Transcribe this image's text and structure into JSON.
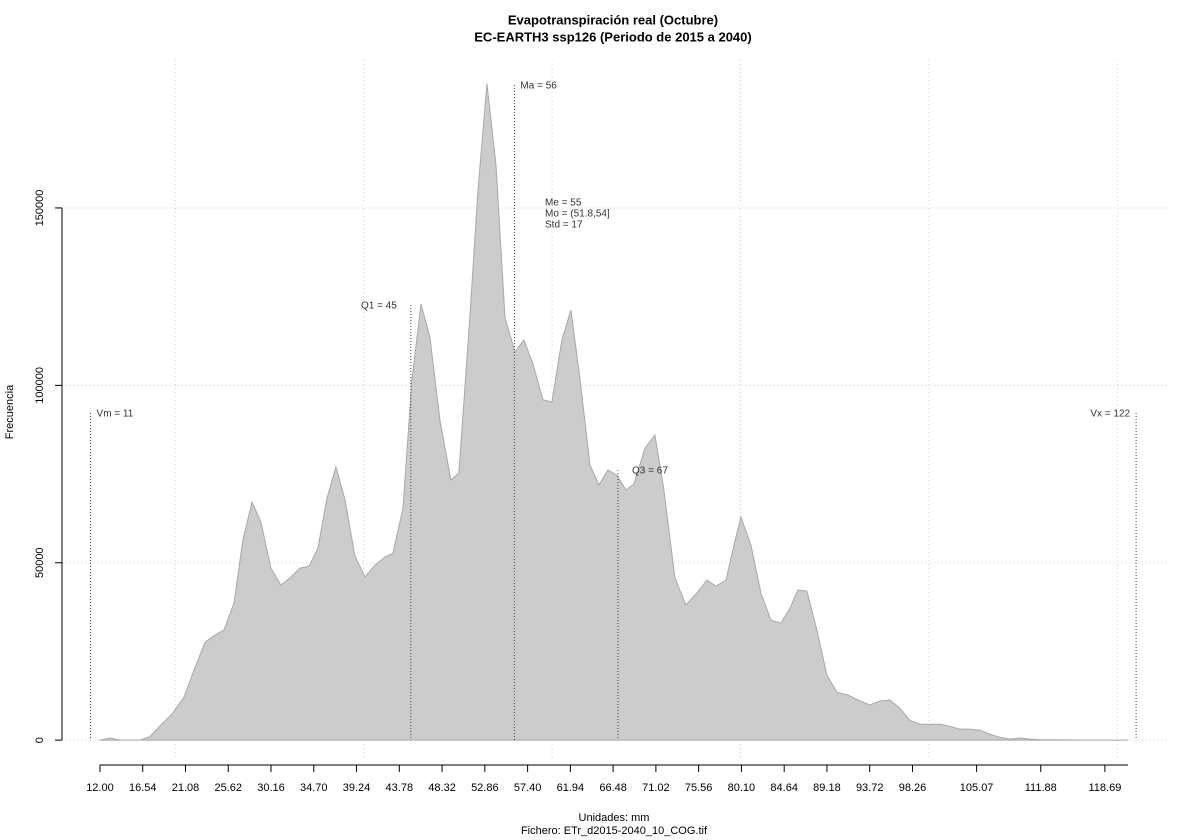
{
  "chart_data": {
    "type": "area",
    "title": "Evapotranspiración real (Octubre)",
    "subtitle": "EC-EARTH3 ssp126 (Periodo de 2015 a 2040)",
    "x_label": "Unidades: mm",
    "caption": "Fichero: ETr_d2015-2040_10_COG.tif",
    "y_label": "Frecuencia",
    "color": "#cccccc",
    "x": [
      12.0,
      13.06,
      14.12,
      15.18,
      16.25,
      17.31,
      18.37,
      19.64,
      20.92,
      21.98,
      23.15,
      24.21,
      25.16,
      26.23,
      27.18,
      28.14,
      29.09,
      30.15,
      31.21,
      32.17,
      33.23,
      34.19,
      35.14,
      36.1,
      37.05,
      38.01,
      39.07,
      40.13,
      41.19,
      42.25,
      43.1,
      44.17,
      45.12,
      46.08,
      47.03,
      48.09,
      49.26,
      50.11,
      51.28,
      52.13,
      53.08,
      54.04,
      55.0,
      56.06,
      57.01,
      57.97,
      59.03,
      59.98,
      61.04,
      62.0,
      62.95,
      64.02,
      64.97,
      65.93,
      66.88,
      67.84,
      68.69,
      69.86,
      70.92,
      71.87,
      73.04,
      74.21,
      75.38,
      76.44,
      77.4,
      78.46,
      79.31,
      80.05,
      81.11,
      82.17,
      83.23,
      84.29,
      85.25,
      86.1,
      87.05,
      88.11,
      89.18,
      90.24,
      91.41,
      92.47,
      93.74,
      94.8,
      95.86,
      96.93,
      97.99,
      99.05,
      100.11,
      101.17,
      102.23,
      103.3,
      104.36,
      105.42,
      106.48,
      107.54,
      108.6,
      109.66,
      110.73,
      111.79,
      113.91,
      116.03,
      118.15,
      121.13
    ],
    "values": [
      0,
      600,
      0,
      0,
      0,
      1000,
      4000,
      7300,
      12100,
      19700,
      27600,
      29600,
      31000,
      38600,
      56400,
      67100,
      61500,
      48500,
      43700,
      45700,
      48500,
      49000,
      54100,
      68200,
      77000,
      67700,
      51900,
      46000,
      49300,
      51600,
      52700,
      65400,
      101500,
      122900,
      113600,
      90200,
      73300,
      75300,
      119800,
      155100,
      185000,
      162100,
      119000,
      109400,
      112800,
      106000,
      95900,
      95300,
      112800,
      121200,
      102000,
      77500,
      71900,
      76100,
      74700,
      70500,
      72200,
      82300,
      86000,
      70500,
      45700,
      38100,
      41500,
      45100,
      43400,
      45100,
      55000,
      62900,
      55000,
      41500,
      33800,
      33000,
      37200,
      42300,
      42000,
      31000,
      18300,
      13500,
      12700,
      11300,
      9900,
      11000,
      11300,
      9000,
      5600,
      4500,
      4500,
      4500,
      3900,
      3100,
      3100,
      2800,
      1700,
      800,
      300,
      600,
      300,
      100,
      100,
      0,
      0,
      0
    ],
    "xlim": [
      7.97,
      125.6
    ],
    "ylim": [
      -5600,
      191700
    ],
    "xticks": [
      {
        "value": 12,
        "label": "12.00"
      },
      16.54,
      21.08,
      25.62,
      30.16,
      {
        "value": 34.7,
        "label": "34.70"
      },
      39.24,
      43.78,
      48.32,
      52.86,
      {
        "value": 57.4,
        "label": "57.40"
      },
      61.94,
      66.48,
      71.02,
      75.56,
      {
        "value": 80.1,
        "label": "80.10"
      },
      84.64,
      89.18,
      93.72,
      98.26,
      105.07,
      111.88,
      118.69
    ],
    "yticks": [
      0,
      50000,
      100000,
      150000
    ],
    "xgrid": [
      20,
      40,
      60,
      80,
      100,
      120
    ],
    "grid": true,
    "markers": [
      {
        "label": "Vm = 11",
        "value": 11
      },
      {
        "label": "Q1 = 45",
        "value": 45
      },
      {
        "label": "Ma = 56",
        "value": 56
      },
      {
        "label": "Q3 = 67",
        "value": 67
      },
      {
        "label": "Vx = 122",
        "value": 122
      }
    ],
    "stats": [
      "Me = 55",
      "Mo = (51.8,54]",
      "Std = 17"
    ]
  }
}
